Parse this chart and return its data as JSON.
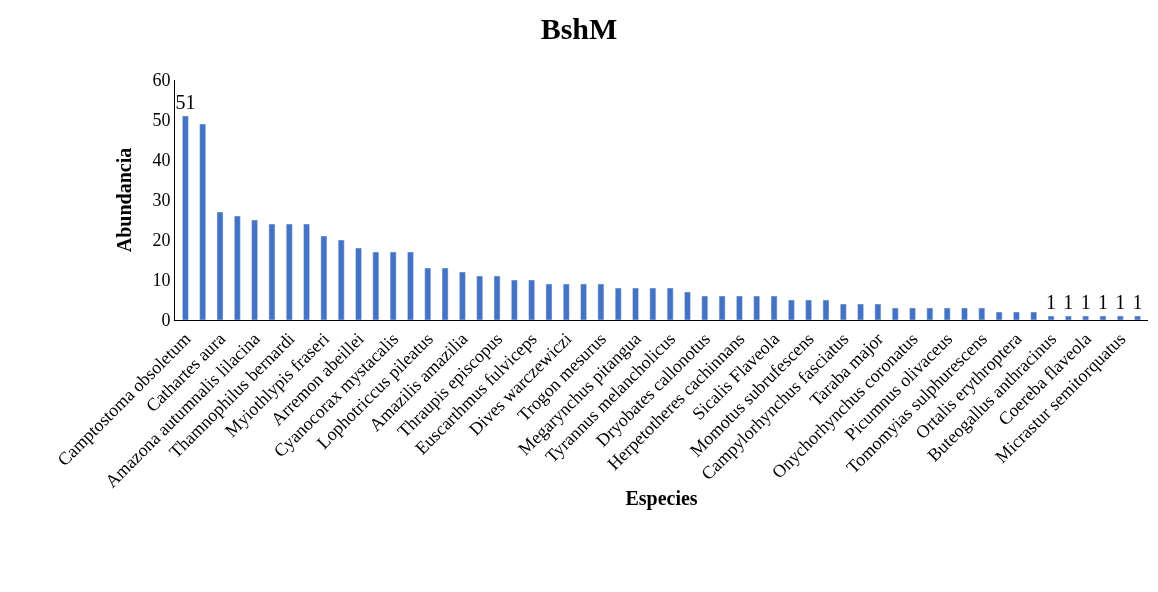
{
  "chart_data": {
    "type": "bar",
    "title": "BshM",
    "xlabel": "Especies",
    "ylabel": "Abundancia",
    "categories": [
      "Camptostoma obsoletum",
      null,
      "Cathartes aura",
      null,
      "Amazona autumnalis lilacina",
      null,
      "Thamnophilus bernardi",
      null,
      "Myiothlypis fraseri",
      null,
      "Arremon abeillei",
      null,
      "Cyanocorax mystacalis",
      null,
      "Lophotriccus pileatus",
      null,
      "Amazilis amazilia",
      null,
      "Thraupis episcopus",
      null,
      "Euscarthmus fulviceps",
      null,
      "Dives warczewiczi",
      null,
      "Trogon mesurus",
      null,
      "Megarynchus pitangua",
      null,
      "Tyrannus melancholicus",
      null,
      "Dryobates callonotus",
      null,
      "Herpetotheres cachinnans",
      null,
      "Sicalis Flaveola",
      null,
      "Momotus subrufescens",
      null,
      "Campylorhynchus fasciatus",
      null,
      "Taraba major",
      null,
      "Onychorhynchus coronatus",
      null,
      "Picumnus olivaceus",
      null,
      "Tomomyias sulphurescens",
      null,
      "Ortalis erythroptera",
      null,
      "Buteogallus anthracinus",
      null,
      "Coereba flaveola",
      null,
      "Micrastur semitorquatus",
      null
    ],
    "values": [
      51,
      49,
      27,
      26,
      25,
      24,
      24,
      24,
      21,
      20,
      18,
      17,
      17,
      17,
      13,
      13,
      12,
      11,
      11,
      10,
      10,
      9,
      9,
      9,
      9,
      8,
      8,
      8,
      8,
      7,
      6,
      6,
      6,
      6,
      6,
      5,
      5,
      5,
      4,
      4,
      4,
      3,
      3,
      3,
      3,
      3,
      3,
      2,
      2,
      2,
      1,
      1,
      1,
      1,
      1,
      1
    ],
    "value_labels": [
      "51",
      null,
      null,
      null,
      null,
      null,
      null,
      null,
      null,
      null,
      null,
      null,
      null,
      null,
      null,
      null,
      null,
      null,
      null,
      null,
      null,
      null,
      null,
      null,
      null,
      null,
      null,
      null,
      null,
      null,
      null,
      null,
      null,
      null,
      null,
      null,
      null,
      null,
      null,
      null,
      null,
      null,
      null,
      null,
      null,
      null,
      null,
      null,
      null,
      null,
      "1",
      "1",
      "1",
      "1",
      "1",
      "1"
    ],
    "color": "#4472c4",
    "ylim": [
      0,
      60
    ],
    "yticks": [
      0,
      10,
      20,
      30,
      40,
      50,
      60
    ],
    "legend": false
  }
}
